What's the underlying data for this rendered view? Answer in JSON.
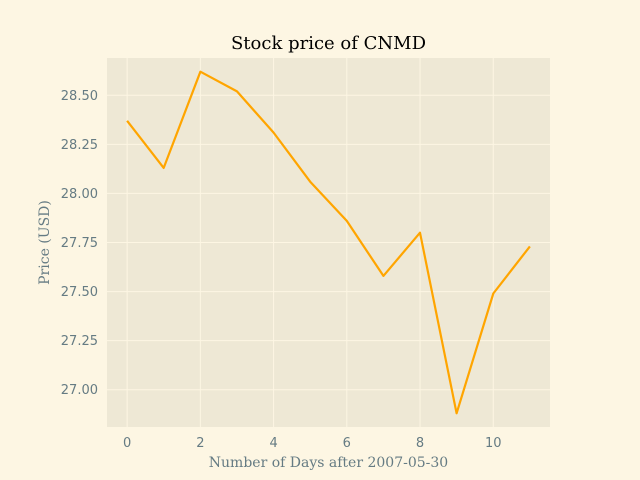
{
  "chart_data": {
    "type": "line",
    "title": "Stock price of CNMD",
    "xlabel": "Number of Days after 2007-05-30",
    "ylabel": "Price (USD)",
    "x": [
      0,
      1,
      2,
      3,
      4,
      5,
      6,
      7,
      8,
      9,
      10,
      11
    ],
    "series": [
      {
        "values": [
          28.37,
          28.13,
          28.62,
          28.52,
          28.31,
          28.06,
          27.86,
          27.58,
          27.8,
          26.88,
          27.49,
          27.73
        ]
      }
    ],
    "xlim": [
      -0.55,
      11.55
    ],
    "ylim": [
      26.81,
      28.69
    ],
    "xticks": [
      0,
      2,
      4,
      6,
      8,
      10
    ],
    "xtick_labels": [
      "0",
      "2",
      "4",
      "6",
      "8",
      "10"
    ],
    "yticks": [
      27.0,
      27.25,
      27.5,
      27.75,
      28.0,
      28.25,
      28.5
    ],
    "ytick_labels": [
      "27.00",
      "27.25",
      "27.50",
      "27.75",
      "28.00",
      "28.25",
      "28.50"
    ],
    "grid": true,
    "colors": {
      "background": "#fdf6e3",
      "plot_area": "#eee8d5",
      "grid": "#fdf6e3",
      "line": "#ffa500",
      "tick_text": "#657b83"
    }
  }
}
